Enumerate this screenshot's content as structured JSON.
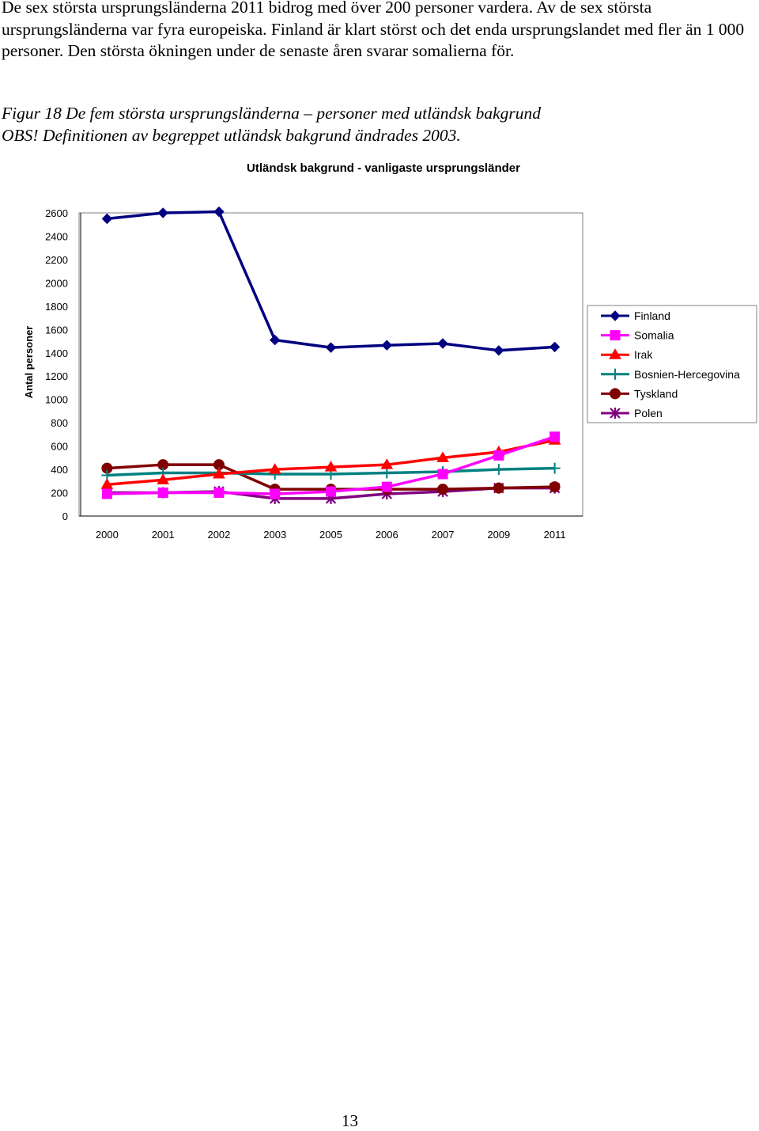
{
  "document": {
    "paragraph": "De sex största ursprungsländerna 2011 bidrog med över 200 personer vardera. Av de sex största ursprungsländerna var fyra europeiska. Finland är klart störst och det enda ursprungslandet med fler än 1 000 personer. Den största ökningen under de senaste åren svarar somalierna för.",
    "caption_line1": "Figur 18 De fem största ursprungsländerna – personer med utländsk bakgrund",
    "caption_line2": "OBS! Definitionen av begreppet utländsk bakgrund ändrades 2003.",
    "page_number": "13"
  },
  "chart_data": {
    "type": "line",
    "title": "Utländsk bakgrund - vanligaste ursprungsländer",
    "xlabel": "",
    "ylabel": "Antal personer",
    "ylim": [
      0,
      2600
    ],
    "yticks": [
      0,
      200,
      400,
      600,
      800,
      1000,
      1200,
      1400,
      1600,
      1800,
      2000,
      2200,
      2400,
      2600
    ],
    "categories": [
      "2000",
      "2001",
      "2002",
      "2003",
      "2005",
      "2006",
      "2007",
      "2009",
      "2011"
    ],
    "grid": false,
    "legend_position": "right",
    "series": [
      {
        "name": "Finland",
        "color": "#000080",
        "marker": "diamond",
        "values": [
          2550,
          2600,
          2610,
          1510,
          1445,
          1465,
          1480,
          1420,
          1450
        ]
      },
      {
        "name": "Somalia",
        "color": "#ff00ff",
        "marker": "square",
        "values": [
          190,
          200,
          200,
          190,
          210,
          250,
          360,
          520,
          680
        ]
      },
      {
        "name": "Irak",
        "color": "#ff0000",
        "marker": "triangle",
        "values": [
          270,
          310,
          360,
          400,
          420,
          440,
          500,
          550,
          650
        ]
      },
      {
        "name": "Bosnien-Hercegovina",
        "color": "#008080",
        "marker": "plus",
        "values": [
          350,
          370,
          370,
          360,
          360,
          370,
          380,
          400,
          410
        ]
      },
      {
        "name": "Tyskland",
        "color": "#800000",
        "marker": "circle",
        "values": [
          410,
          440,
          440,
          230,
          230,
          230,
          230,
          240,
          250
        ]
      },
      {
        "name": "Polen",
        "color": "#800080",
        "marker": "asterisk",
        "values": [
          200,
          200,
          210,
          150,
          150,
          190,
          210,
          240,
          240
        ]
      }
    ]
  }
}
